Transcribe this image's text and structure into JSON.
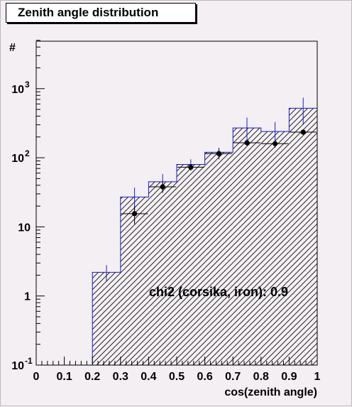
{
  "title": "Zenith angle distribution",
  "chart_data": {
    "type": "bar",
    "title": "Zenith angle distribution",
    "xlabel": "cos(zenith angle)",
    "ylabel": "#",
    "yscale": "log",
    "xlim": [
      0,
      1
    ],
    "ylim": [
      0.1,
      5000
    ],
    "x_ticks": [
      "0",
      "0.1",
      "0.2",
      "0.3",
      "0.4",
      "0.5",
      "0.6",
      "0.7",
      "0.8",
      "0.9",
      "1"
    ],
    "y_ticks": [
      {
        "base": "10",
        "exp": "-1",
        "value": 0.1
      },
      {
        "base": "1",
        "exp": "",
        "value": 1
      },
      {
        "base": "10",
        "exp": "",
        "value": 10
      },
      {
        "base": "10",
        "exp": "2",
        "value": 100
      },
      {
        "base": "10",
        "exp": "3",
        "value": 1000
      }
    ],
    "bin_edges": [
      0.2,
      0.3,
      0.4,
      0.5,
      0.6,
      0.7,
      0.8,
      0.9,
      1.0
    ],
    "series": [
      {
        "kind": "histogram",
        "color": "#1a1acc",
        "values": [
          2.2,
          27,
          45,
          80,
          120,
          270,
          240,
          520
        ],
        "err_low": [
          1.6,
          16,
          33,
          65,
          95,
          160,
          150,
          300
        ],
        "err_high": [
          2.8,
          37,
          58,
          95,
          140,
          380,
          330,
          740
        ]
      },
      {
        "kind": "points",
        "color": "#000000",
        "x": [
          0.35,
          0.45,
          0.55,
          0.65,
          0.75,
          0.85,
          0.95
        ],
        "values": [
          15.5,
          38,
          73,
          115,
          165,
          160,
          235
        ],
        "err_low": [
          11,
          31,
          66,
          98,
          150,
          140,
          215
        ],
        "err_high": [
          20,
          46,
          80,
          132,
          180,
          180,
          255
        ]
      }
    ],
    "annotation": "chi2 (corsika, iron): 0.9"
  }
}
